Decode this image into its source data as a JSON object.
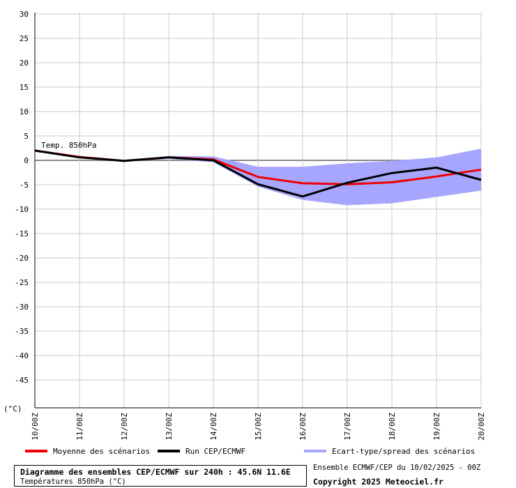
{
  "chart_data": {
    "type": "line",
    "title": "Diagramme des ensembles CEP/ECMWF sur 240h : 45.6N 11.6E",
    "subtitle": "Températures 850hPa (°C)",
    "series_label": "Temp. 850hPa",
    "y_unit": "(°C)",
    "ylim": [
      -50,
      32
    ],
    "y_ticks": [
      30,
      25,
      20,
      15,
      10,
      5,
      0,
      -5,
      -10,
      -15,
      -20,
      -25,
      -30,
      -35,
      -40,
      -45
    ],
    "categories": [
      "10/00Z",
      "11/00Z",
      "12/00Z",
      "13/00Z",
      "14/00Z",
      "15/00Z",
      "16/00Z",
      "17/00Z",
      "18/00Z",
      "19/00Z",
      "20/00Z"
    ],
    "grid": true,
    "legend_position": "bottom",
    "series": [
      {
        "name": "Moyenne des scénarios",
        "color": "#ee0000",
        "values": [
          2.0,
          0.7,
          -0.1,
          0.6,
          0.2,
          -3.4,
          -4.7,
          -4.9,
          -4.5,
          -3.3,
          -1.9
        ]
      },
      {
        "name": "Run CEP/ECMWF",
        "color": "#000000",
        "values": [
          2.0,
          0.6,
          -0.1,
          0.6,
          0.0,
          -4.9,
          -7.4,
          -4.6,
          -2.6,
          -1.5,
          -4.0
        ]
      }
    ],
    "spread": {
      "name": "Ecart-type/spread des scénarios",
      "color": "#a6a6ff",
      "upper": [
        2.0,
        0.8,
        0.0,
        0.9,
        0.8,
        -1.3,
        -1.3,
        -0.6,
        -0.1,
        0.6,
        2.4
      ],
      "lower": [
        2.0,
        0.6,
        -0.2,
        0.3,
        -0.4,
        -5.4,
        -8.1,
        -9.2,
        -8.8,
        -7.5,
        -6.2
      ]
    }
  },
  "footer": {
    "run_info": "Ensemble ECMWF/CEP du 10/02/2025 - 00Z",
    "copyright": "Copyright 2025 Meteociel.fr"
  }
}
